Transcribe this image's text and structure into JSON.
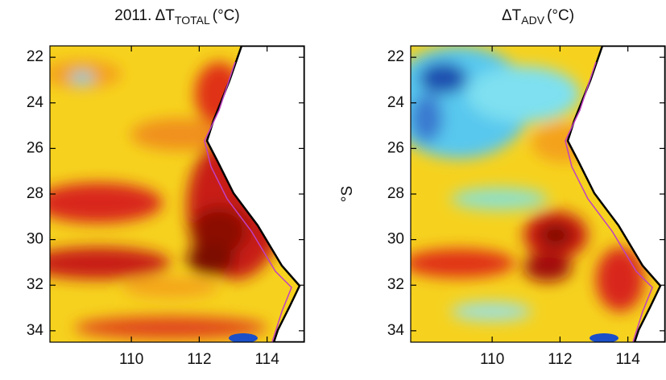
{
  "panels": [
    {
      "title": "2011. ΔT",
      "title_sub": "TOTAL",
      "title_unit": "(°C)",
      "xlim": [
        107.6,
        115.1
      ],
      "ylim": [
        21.5,
        34.5
      ],
      "xticks": [
        110,
        112,
        114
      ],
      "yticks": [
        22,
        24,
        26,
        28,
        30,
        32,
        34
      ]
    },
    {
      "title": "ΔT",
      "title_sub": "ADV",
      "title_unit": "(°C)",
      "ylabel": "°S",
      "xlim": [
        107.6,
        115.1
      ],
      "ylim": [
        21.5,
        34.5
      ],
      "xticks": [
        110,
        112,
        114
      ],
      "yticks": [
        22,
        24,
        26,
        28,
        30,
        32,
        34
      ]
    }
  ]
}
